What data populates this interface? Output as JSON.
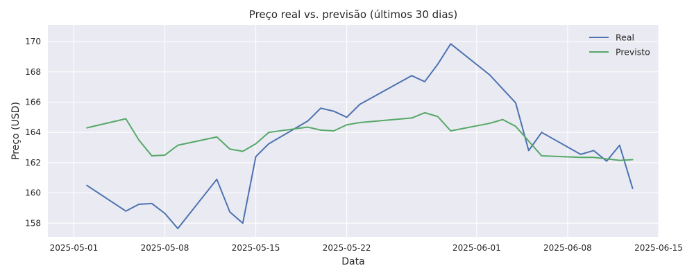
{
  "chart_data": {
    "type": "line",
    "title": "Preço real vs. previsão (últimos 30 dias)",
    "xlabel": "Data",
    "ylabel": "Preço (USD)",
    "ylim": [
      157.1,
      171.1
    ],
    "xlim": [
      "2025-04-29",
      "2025-06-15"
    ],
    "yticks": [
      158,
      160,
      162,
      164,
      166,
      168,
      170
    ],
    "xticks": [
      "2025-05-01",
      "2025-05-08",
      "2025-05-15",
      "2025-05-22",
      "2025-06-01",
      "2025-06-08",
      "2025-06-15"
    ],
    "grid": true,
    "legend_position": "top-right",
    "series": [
      {
        "name": "Real",
        "color": "#4C72B0",
        "points": [
          [
            "2025-05-02",
            160.5
          ],
          [
            "2025-05-05",
            158.8
          ],
          [
            "2025-05-06",
            159.25
          ],
          [
            "2025-05-07",
            159.3
          ],
          [
            "2025-05-08",
            158.65
          ],
          [
            "2025-05-09",
            157.65
          ],
          [
            "2025-05-12",
            160.9
          ],
          [
            "2025-05-13",
            158.75
          ],
          [
            "2025-05-14",
            158.0
          ],
          [
            "2025-05-15",
            162.4
          ],
          [
            "2025-05-16",
            163.25
          ],
          [
            "2025-05-19",
            164.75
          ],
          [
            "2025-05-20",
            165.6
          ],
          [
            "2025-05-21",
            165.4
          ],
          [
            "2025-05-22",
            165.0
          ],
          [
            "2025-05-23",
            165.85
          ],
          [
            "2025-05-27",
            167.75
          ],
          [
            "2025-05-28",
            167.35
          ],
          [
            "2025-05-29",
            168.5
          ],
          [
            "2025-05-30",
            169.85
          ],
          [
            "2025-06-02",
            167.8
          ],
          [
            "2025-06-04",
            165.95
          ],
          [
            "2025-06-05",
            162.8
          ],
          [
            "2025-06-06",
            164.0
          ],
          [
            "2025-06-09",
            162.55
          ],
          [
            "2025-06-10",
            162.8
          ],
          [
            "2025-06-11",
            162.1
          ],
          [
            "2025-06-12",
            163.15
          ],
          [
            "2025-06-13",
            160.3
          ]
        ]
      },
      {
        "name": "Previsto",
        "color": "#55A868",
        "points": [
          [
            "2025-05-02",
            164.3
          ],
          [
            "2025-05-05",
            164.9
          ],
          [
            "2025-05-06",
            163.5
          ],
          [
            "2025-05-07",
            162.45
          ],
          [
            "2025-05-08",
            162.5
          ],
          [
            "2025-05-09",
            163.15
          ],
          [
            "2025-05-12",
            163.7
          ],
          [
            "2025-05-13",
            162.9
          ],
          [
            "2025-05-14",
            162.75
          ],
          [
            "2025-05-15",
            163.25
          ],
          [
            "2025-05-16",
            164.0
          ],
          [
            "2025-05-19",
            164.35
          ],
          [
            "2025-05-20",
            164.15
          ],
          [
            "2025-05-21",
            164.1
          ],
          [
            "2025-05-22",
            164.5
          ],
          [
            "2025-05-23",
            164.65
          ],
          [
            "2025-05-27",
            164.95
          ],
          [
            "2025-05-28",
            165.3
          ],
          [
            "2025-05-29",
            165.05
          ],
          [
            "2025-05-30",
            164.1
          ],
          [
            "2025-06-02",
            164.6
          ],
          [
            "2025-06-03",
            164.85
          ],
          [
            "2025-06-04",
            164.4
          ],
          [
            "2025-06-06",
            162.45
          ],
          [
            "2025-06-09",
            162.35
          ],
          [
            "2025-06-10",
            162.35
          ],
          [
            "2025-06-11",
            162.25
          ],
          [
            "2025-06-12",
            162.15
          ],
          [
            "2025-06-13",
            162.2
          ]
        ]
      }
    ]
  },
  "colors": {
    "plot_background": "#EAEAF2",
    "grid": "#FFFFFF",
    "text": "#262626"
  }
}
